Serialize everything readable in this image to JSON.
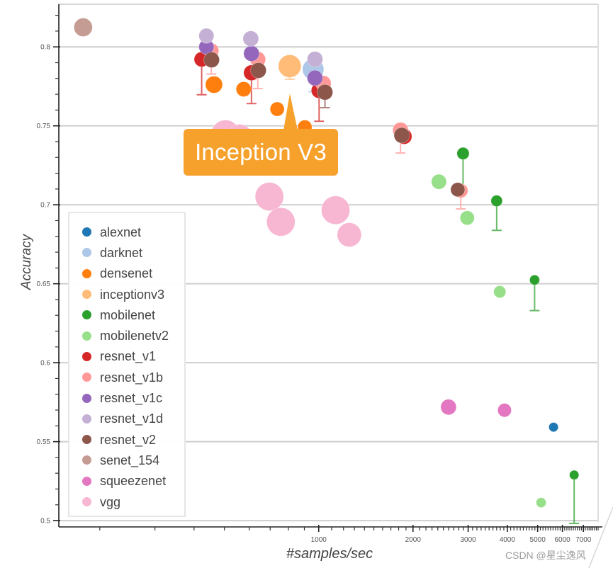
{
  "chart_data": {
    "type": "scatter",
    "title": "",
    "xlabel": "#samples/sec",
    "ylabel": "Accuracy",
    "xscale": "log",
    "xlim": [
      148,
      7800
    ],
    "ylim": [
      0.496,
      0.827
    ],
    "grid": {
      "horizontal": true,
      "vertical": false
    },
    "legend": {
      "position": "bottom-left"
    },
    "xticks": [
      {
        "value": 1000,
        "label": "1000"
      },
      {
        "value": 2000,
        "label": "2000"
      },
      {
        "value": 3000,
        "label": "3000"
      },
      {
        "value": 4000,
        "label": "4000"
      },
      {
        "value": 5000,
        "label": "5000"
      },
      {
        "value": 6000,
        "label": "6000"
      },
      {
        "value": 7000,
        "label": "7000"
      }
    ],
    "yticks": [
      {
        "value": 0.5,
        "label": "0.5"
      },
      {
        "value": 0.55,
        "label": "0.55"
      },
      {
        "value": 0.6,
        "label": "0.6"
      },
      {
        "value": 0.65,
        "label": "0.65"
      },
      {
        "value": 0.7,
        "label": "0.7"
      },
      {
        "value": 0.75,
        "label": "0.75"
      },
      {
        "value": 0.8,
        "label": "0.8"
      }
    ],
    "series": [
      {
        "name": "alexnet",
        "color": "#1f77b4",
        "points": [
          {
            "x": 5620,
            "y": 0.5592,
            "size": 0.33
          }
        ]
      },
      {
        "name": "darknet",
        "color": "#aec7e8",
        "points": [
          {
            "x": 960,
            "y": 0.7858,
            "size": 0.75,
            "err_low": 0.7716
          }
        ]
      },
      {
        "name": "densenet",
        "color": "#ff7f0e",
        "points": [
          {
            "x": 463,
            "y": 0.7761,
            "size": 0.6
          },
          {
            "x": 576,
            "y": 0.7732,
            "size": 0.53
          },
          {
            "x": 737,
            "y": 0.7606,
            "size": 0.5
          },
          {
            "x": 903,
            "y": 0.7492,
            "size": 0.5
          }
        ]
      },
      {
        "name": "inceptionv3",
        "color": "#ffbb78",
        "points": [
          {
            "x": 808,
            "y": 0.7878,
            "size": 0.8,
            "err_low": 0.7795
          }
        ]
      },
      {
        "name": "mobilenet",
        "color": "#2ca02c",
        "points": [
          {
            "x": 2890,
            "y": 0.7325,
            "size": 0.43,
            "err_low": 0.7089
          },
          {
            "x": 3700,
            "y": 0.7025,
            "size": 0.4,
            "err_low": 0.6838
          },
          {
            "x": 4890,
            "y": 0.6524,
            "size": 0.35,
            "err_low": 0.633
          },
          {
            "x": 6540,
            "y": 0.5289,
            "size": 0.33,
            "err_low": 0.4982
          }
        ]
      },
      {
        "name": "mobilenetv2",
        "color": "#98df8a",
        "points": [
          {
            "x": 2420,
            "y": 0.7146,
            "size": 0.53
          },
          {
            "x": 2980,
            "y": 0.6917,
            "size": 0.5
          },
          {
            "x": 3785,
            "y": 0.6449,
            "size": 0.43
          },
          {
            "x": 5130,
            "y": 0.5114,
            "size": 0.35
          }
        ]
      },
      {
        "name": "resnet_v1",
        "color": "#d62728",
        "points": [
          {
            "x": 423,
            "y": 0.7921,
            "size": 0.53,
            "err_low": 0.7697
          },
          {
            "x": 610,
            "y": 0.7836,
            "size": 0.55,
            "err_low": 0.7641
          },
          {
            "x": 1003,
            "y": 0.7724,
            "size": 0.55,
            "err_low": 0.7529
          },
          {
            "x": 1873,
            "y": 0.7433,
            "size": 0.55
          }
        ]
      },
      {
        "name": "resnet_v1b",
        "color": "#ff9896",
        "points": [
          {
            "x": 454,
            "y": 0.7976,
            "size": 0.53,
            "err_low": 0.7828
          },
          {
            "x": 639,
            "y": 0.7921,
            "size": 0.55,
            "err_low": 0.7736
          },
          {
            "x": 1034,
            "y": 0.7769,
            "size": 0.55
          },
          {
            "x": 1825,
            "y": 0.7473,
            "size": 0.55,
            "err_low": 0.7328
          },
          {
            "x": 2842,
            "y": 0.7089,
            "size": 0.5,
            "err_low": 0.6974
          }
        ]
      },
      {
        "name": "resnet_v1c",
        "color": "#9467bd",
        "points": [
          {
            "x": 438,
            "y": 0.8,
            "size": 0.53
          },
          {
            "x": 610,
            "y": 0.7958,
            "size": 0.55
          },
          {
            "x": 973,
            "y": 0.7803,
            "size": 0.55
          }
        ]
      },
      {
        "name": "resnet_v1d",
        "color": "#c5b0d5",
        "points": [
          {
            "x": 438,
            "y": 0.807,
            "size": 0.53
          },
          {
            "x": 607,
            "y": 0.8052,
            "size": 0.55
          },
          {
            "x": 973,
            "y": 0.7922,
            "size": 0.55
          }
        ]
      },
      {
        "name": "resnet_v2",
        "color": "#8c564b",
        "points": [
          {
            "x": 455,
            "y": 0.7918,
            "size": 0.55
          },
          {
            "x": 642,
            "y": 0.7851,
            "size": 0.55
          },
          {
            "x": 1047,
            "y": 0.7713,
            "size": 0.55,
            "err_low": 0.7615
          },
          {
            "x": 1842,
            "y": 0.744,
            "size": 0.55
          },
          {
            "x": 2779,
            "y": 0.7096,
            "size": 0.5
          }
        ]
      },
      {
        "name": "senet_154",
        "color": "#c49c94",
        "points": [
          {
            "x": 177,
            "y": 0.8124,
            "size": 0.65
          }
        ]
      },
      {
        "name": "squeezenet",
        "color": "#e377c2",
        "points": [
          {
            "x": 2597,
            "y": 0.5719,
            "size": 0.55
          },
          {
            "x": 3920,
            "y": 0.5699,
            "size": 0.48
          }
        ]
      },
      {
        "name": "vgg",
        "color": "#f7b6d2",
        "points": [
          {
            "x": 504,
            "y": 0.7447,
            "size": 1.0
          },
          {
            "x": 559,
            "y": 0.7429,
            "size": 0.9
          },
          {
            "x": 696,
            "y": 0.7052,
            "size": 1.0
          },
          {
            "x": 757,
            "y": 0.6892,
            "size": 1.0
          },
          {
            "x": 1132,
            "y": 0.6966,
            "size": 1.0
          },
          {
            "x": 1252,
            "y": 0.681,
            "size": 0.85
          }
        ]
      }
    ],
    "annotations": [
      {
        "text": "Inception V3",
        "target_series": "inceptionv3",
        "x": 808,
        "y": 0.7878,
        "color": "#f5a12c",
        "text_color": "#ffffff"
      }
    ]
  },
  "watermark": "CSDN @星尘逸风"
}
